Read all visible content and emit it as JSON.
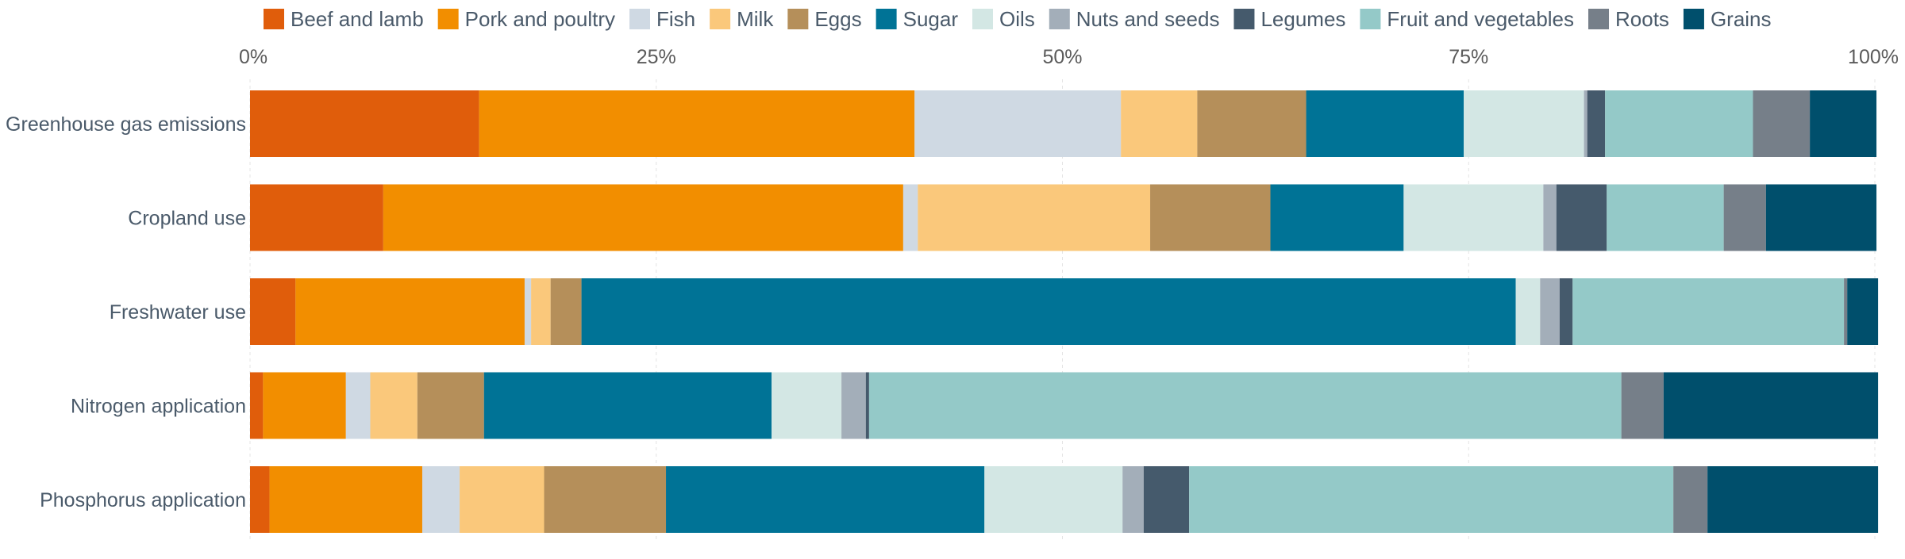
{
  "chart_data": {
    "type": "bar",
    "orientation": "horizontal",
    "stacked": true,
    "normalized": true,
    "xlim": [
      0,
      100
    ],
    "x_ticks": [
      "0%",
      "25%",
      "50%",
      "75%",
      "100%"
    ],
    "x_axis_position": "top",
    "grid": true,
    "legend_position": "top",
    "categories": [
      "Greenhouse gas emissions",
      "Cropland use",
      "Freshwater use",
      "Nitrogen application",
      "Phosphorus application"
    ],
    "series": [
      {
        "name": "Beef and lamb",
        "color": "#e05d0b",
        "values": [
          14.1,
          8.2,
          2.8,
          0.8,
          1.2
        ]
      },
      {
        "name": "Pork and poultry",
        "color": "#f28e00",
        "values": [
          26.8,
          32.0,
          14.1,
          5.1,
          9.4
        ]
      },
      {
        "name": "Fish",
        "color": "#cfd9e3",
        "values": [
          12.7,
          0.9,
          0.4,
          1.5,
          2.3
        ]
      },
      {
        "name": "Milk",
        "color": "#fac87b",
        "values": [
          4.7,
          14.3,
          1.2,
          2.9,
          5.2
        ]
      },
      {
        "name": "Eggs",
        "color": "#b58f5a",
        "values": [
          6.7,
          7.4,
          1.9,
          4.1,
          7.5
        ]
      },
      {
        "name": "Sugar",
        "color": "#007396",
        "values": [
          9.7,
          8.2,
          57.5,
          17.7,
          19.6
        ]
      },
      {
        "name": "Oils",
        "color": "#d3e7e4",
        "values": [
          7.4,
          8.6,
          1.5,
          4.3,
          8.5
        ]
      },
      {
        "name": "Nuts and seeds",
        "color": "#a3aeb9",
        "values": [
          0.2,
          0.8,
          1.2,
          1.5,
          1.3
        ]
      },
      {
        "name": "Legumes",
        "color": "#455a6c",
        "values": [
          1.1,
          3.1,
          0.8,
          0.2,
          2.8
        ]
      },
      {
        "name": "Fruit and vegetables",
        "color": "#94c9c8",
        "values": [
          9.1,
          7.2,
          16.7,
          46.3,
          29.8
        ]
      },
      {
        "name": "Roots",
        "color": "#767f89",
        "values": [
          3.5,
          2.6,
          0.2,
          2.6,
          2.1
        ]
      },
      {
        "name": "Grains",
        "color": "#004f6c",
        "values": [
          4.1,
          6.8,
          1.9,
          13.2,
          10.5
        ]
      }
    ]
  }
}
